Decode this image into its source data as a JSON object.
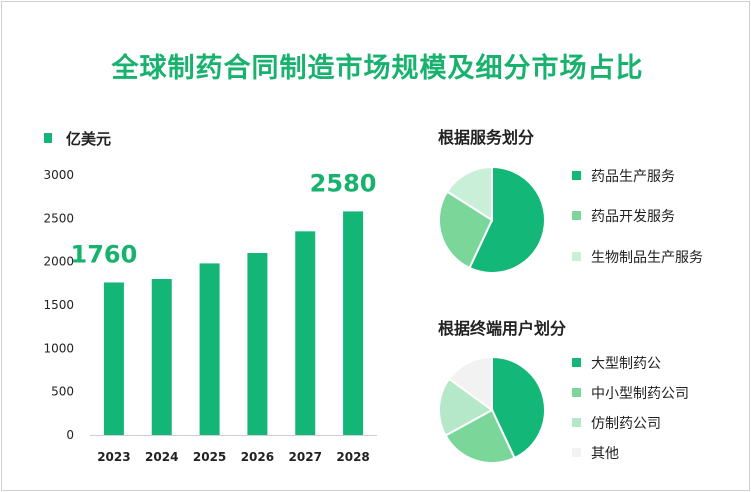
{
  "page": {
    "title": "全球制药合同制造市场规模及细分市场占比"
  },
  "chart_data": [
    {
      "type": "bar",
      "unit_label": "亿美元",
      "categories": [
        "2023",
        "2024",
        "2025",
        "2026",
        "2027",
        "2028"
      ],
      "values": [
        1760,
        1800,
        1980,
        2100,
        2350,
        2580
      ],
      "annotations": [
        {
          "category": "2023",
          "text": "1760"
        },
        {
          "category": "2028",
          "text": "2580"
        }
      ],
      "yticks": [
        "0",
        "500",
        "1000",
        "1500",
        "2000",
        "2500",
        "3000"
      ],
      "ylim": [
        0,
        3000
      ],
      "color": "#14b677",
      "annotation_color": "#17b26e"
    },
    {
      "type": "pie",
      "title": "根据服务划分",
      "slices": [
        {
          "label": "药品生产服务",
          "value": 57,
          "color": "#13b777"
        },
        {
          "label": "药品开发服务",
          "value": 27,
          "color": "#7bd69a"
        },
        {
          "label": "生物制品生产服务",
          "value": 16,
          "color": "#c9efd8"
        }
      ]
    },
    {
      "type": "pie",
      "title": "根据终端用户划分",
      "slices": [
        {
          "label": "大型制药公",
          "value": 43,
          "color": "#13b777"
        },
        {
          "label": "中小型制药公司",
          "value": 24,
          "color": "#7bd69a"
        },
        {
          "label": "仿制药公司",
          "value": 18,
          "color": "#b4e8c8"
        },
        {
          "label": "其他",
          "value": 15,
          "color": "#f2f2f2"
        }
      ]
    }
  ]
}
